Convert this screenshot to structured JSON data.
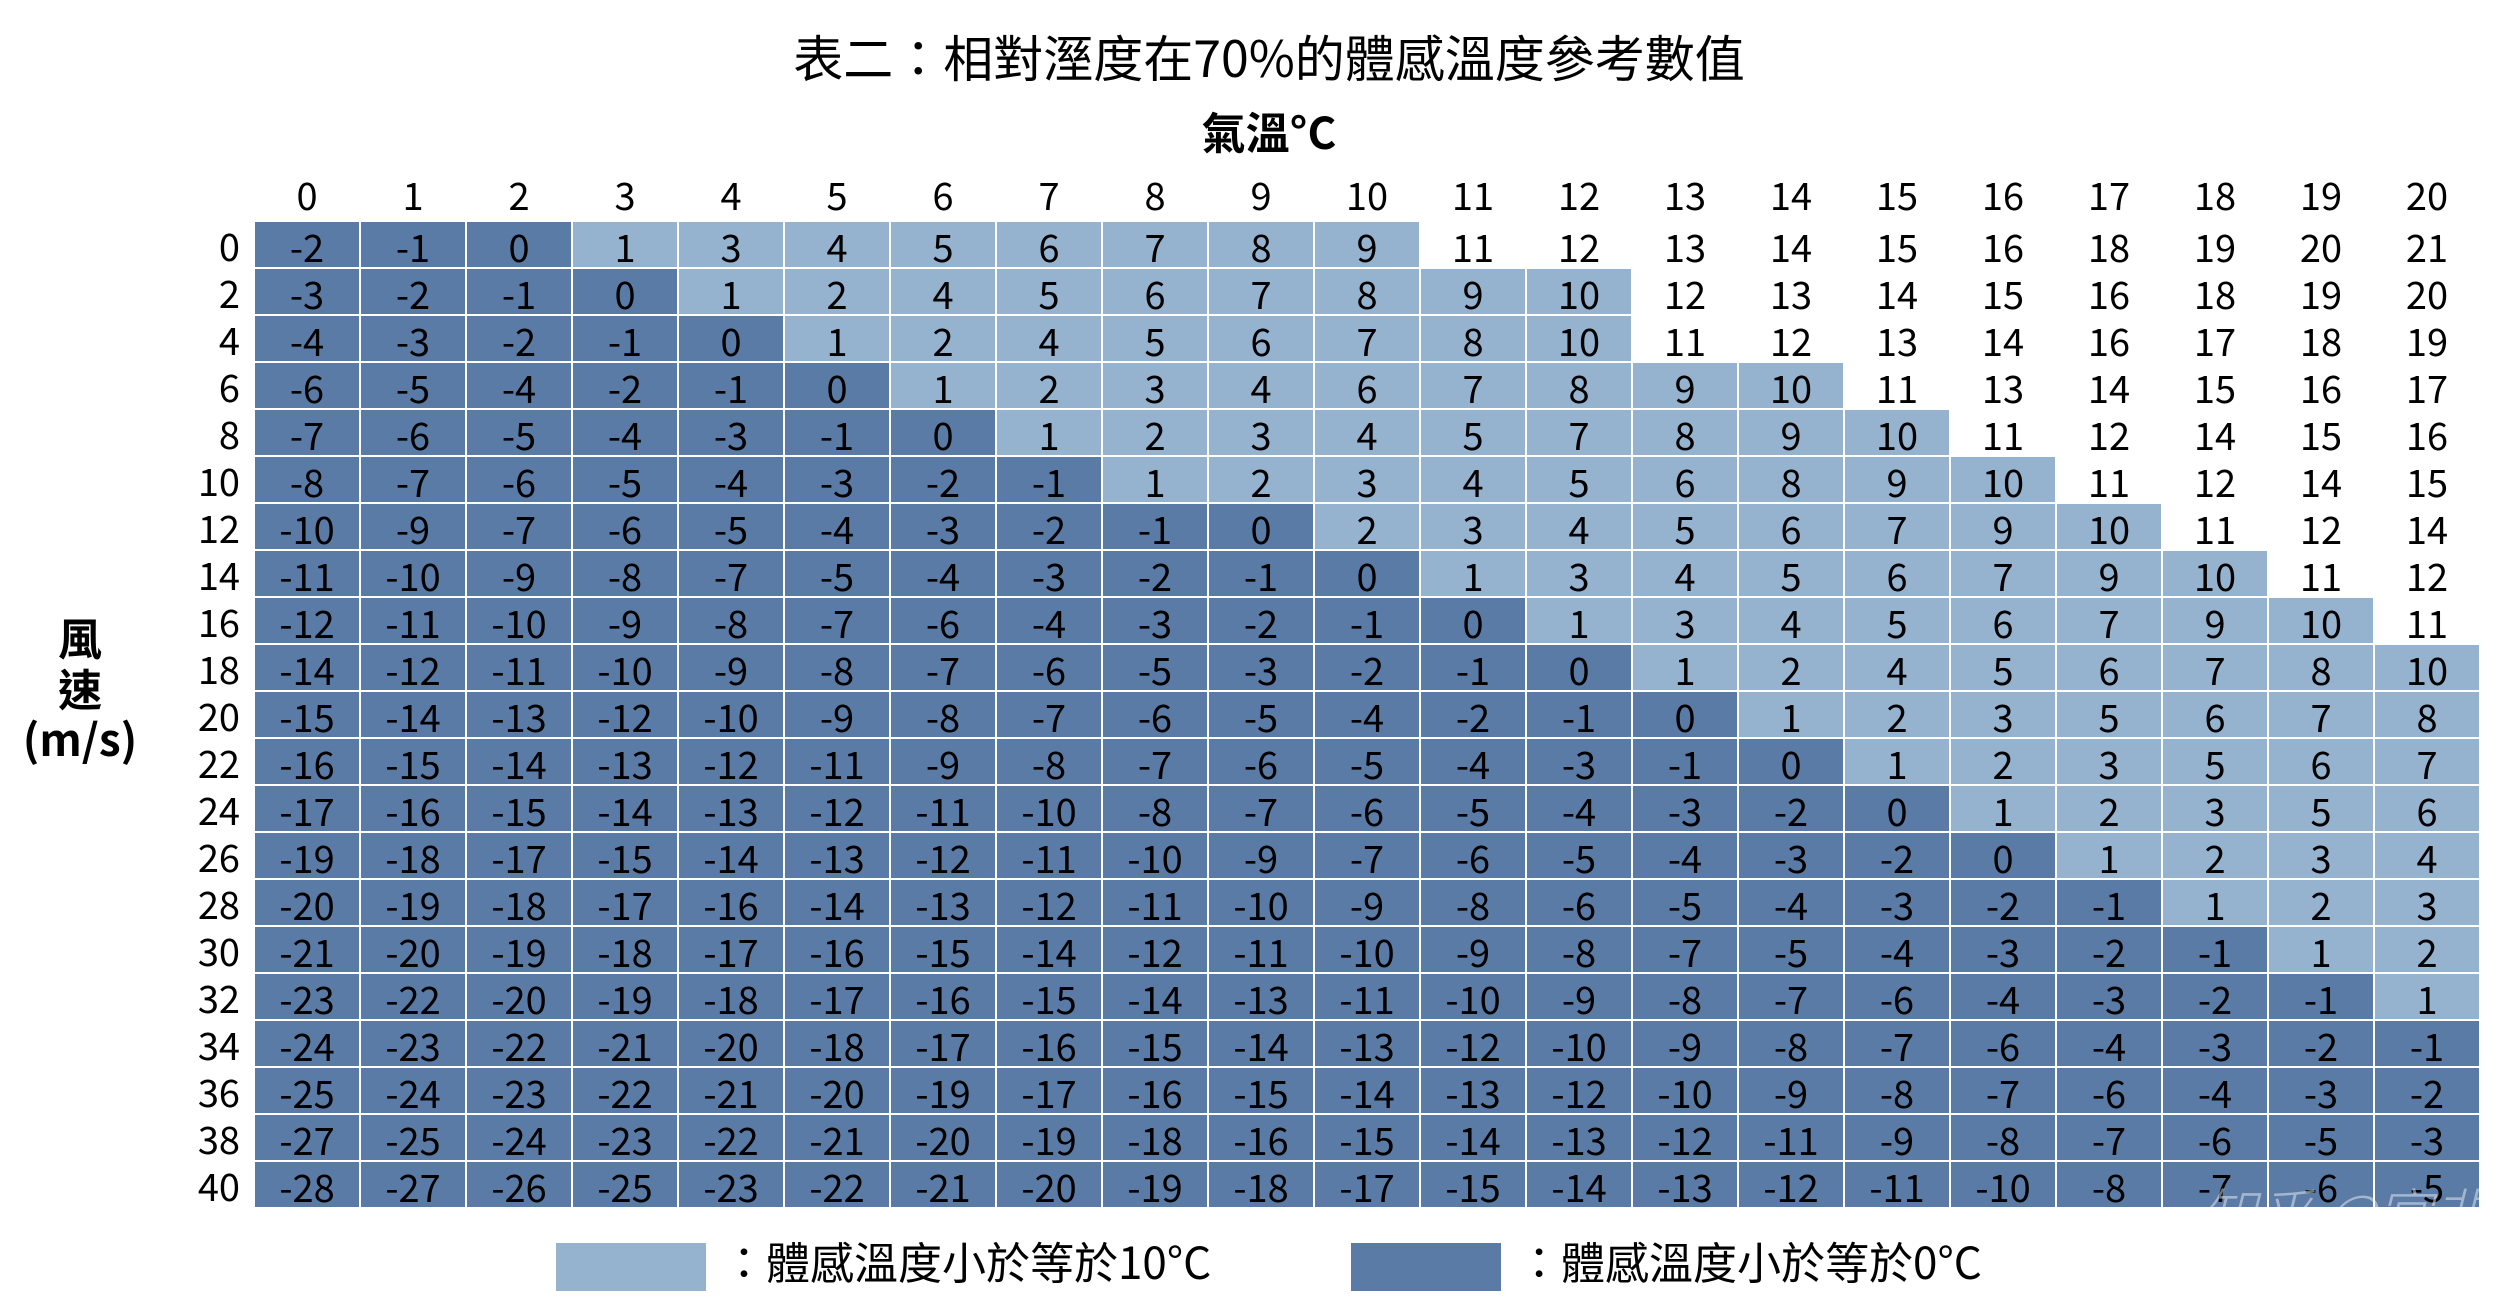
{
  "title": "表二：相對溼度在70%的體感溫度參考數值",
  "subtitle": "氣溫°C",
  "ylabel_lines": [
    "風",
    "速",
    "(m/s)"
  ],
  "legend": {
    "light_text": "：體感溫度小於等於10°C",
    "dark_text": "：體感溫度小於等於0°C"
  },
  "watermark": "知乎 @宮非",
  "colors": {
    "dark": "#5a7ba6",
    "light": "#95b2cf",
    "none": "#ffffff",
    "border": "#ffffff",
    "text": "#000000"
  },
  "font": {
    "title_size": 50,
    "subtitle_size": 44,
    "cell_size": 38,
    "label_size": 44
  },
  "col_headers": [
    0,
    1,
    2,
    3,
    4,
    5,
    6,
    7,
    8,
    9,
    10,
    11,
    12,
    13,
    14,
    15,
    16,
    17,
    18,
    19,
    20
  ],
  "row_headers": [
    0,
    2,
    4,
    6,
    8,
    10,
    12,
    14,
    16,
    18,
    20,
    22,
    24,
    26,
    28,
    30,
    32,
    34,
    36,
    38,
    40
  ],
  "cells": [
    [
      -2,
      -1,
      0,
      1,
      3,
      4,
      5,
      6,
      7,
      8,
      9,
      11,
      12,
      13,
      14,
      15,
      16,
      18,
      19,
      20,
      21
    ],
    [
      -3,
      -2,
      -1,
      0,
      1,
      2,
      4,
      5,
      6,
      7,
      8,
      9,
      10,
      12,
      13,
      14,
      15,
      16,
      18,
      19,
      20
    ],
    [
      -4,
      -3,
      -2,
      -1,
      0,
      1,
      2,
      4,
      5,
      6,
      7,
      8,
      10,
      11,
      12,
      13,
      14,
      16,
      17,
      18,
      19
    ],
    [
      -6,
      -5,
      -4,
      -2,
      -1,
      0,
      1,
      2,
      3,
      4,
      6,
      7,
      8,
      9,
      10,
      11,
      13,
      14,
      15,
      16,
      17
    ],
    [
      -7,
      -6,
      -5,
      -4,
      -3,
      -1,
      0,
      1,
      2,
      3,
      4,
      5,
      7,
      8,
      9,
      10,
      11,
      12,
      14,
      15,
      16
    ],
    [
      -8,
      -7,
      -6,
      -5,
      -4,
      -3,
      -2,
      -1,
      1,
      2,
      3,
      4,
      5,
      6,
      8,
      9,
      10,
      11,
      12,
      14,
      15
    ],
    [
      -10,
      -9,
      -7,
      -6,
      -5,
      -4,
      -3,
      -2,
      -1,
      0,
      2,
      3,
      4,
      5,
      6,
      7,
      9,
      10,
      11,
      12,
      14
    ],
    [
      -11,
      -10,
      -9,
      -8,
      -7,
      -5,
      -4,
      -3,
      -2,
      -1,
      0,
      1,
      3,
      4,
      5,
      6,
      7,
      9,
      10,
      11,
      12
    ],
    [
      -12,
      -11,
      -10,
      -9,
      -8,
      -7,
      -6,
      -4,
      -3,
      -2,
      -1,
      0,
      1,
      3,
      4,
      5,
      6,
      7,
      9,
      10,
      11
    ],
    [
      -14,
      -12,
      -11,
      -10,
      -9,
      -8,
      -7,
      -6,
      -5,
      -3,
      -2,
      -1,
      0,
      1,
      2,
      4,
      5,
      6,
      7,
      8,
      10
    ],
    [
      -15,
      -14,
      -13,
      -12,
      -10,
      -9,
      -8,
      -7,
      -6,
      -5,
      -4,
      -2,
      -1,
      0,
      1,
      2,
      3,
      5,
      6,
      7,
      8
    ],
    [
      -16,
      -15,
      -14,
      -13,
      -12,
      -11,
      -9,
      -8,
      -7,
      -6,
      -5,
      -4,
      -3,
      -1,
      0,
      1,
      2,
      3,
      5,
      6,
      7
    ],
    [
      -17,
      -16,
      -15,
      -14,
      -13,
      -12,
      -11,
      -10,
      -8,
      -7,
      -6,
      -5,
      -4,
      -3,
      -2,
      0,
      1,
      2,
      3,
      5,
      6
    ],
    [
      -19,
      -18,
      -17,
      -15,
      -14,
      -13,
      -12,
      -11,
      -10,
      -9,
      -7,
      -6,
      -5,
      -4,
      -3,
      -2,
      0,
      1,
      2,
      3,
      4
    ],
    [
      -20,
      -19,
      -18,
      -17,
      -16,
      -14,
      -13,
      -12,
      -11,
      -10,
      -9,
      -8,
      -6,
      -5,
      -4,
      -3,
      -2,
      -1,
      1,
      2,
      3
    ],
    [
      -21,
      -20,
      -19,
      -18,
      -17,
      -16,
      -15,
      -14,
      -12,
      -11,
      -10,
      -9,
      -8,
      -7,
      -5,
      -4,
      -3,
      -2,
      -1,
      1,
      2
    ],
    [
      -23,
      -22,
      -20,
      -19,
      -18,
      -17,
      -16,
      -15,
      -14,
      -13,
      -11,
      -10,
      -9,
      -8,
      -7,
      -6,
      -4,
      -3,
      -2,
      -1,
      1
    ],
    [
      -24,
      -23,
      -22,
      -21,
      -20,
      -18,
      -17,
      -16,
      -15,
      -14,
      -13,
      -12,
      -10,
      -9,
      -8,
      -7,
      -6,
      -4,
      -3,
      -2,
      -1
    ],
    [
      -25,
      -24,
      -23,
      -22,
      -21,
      -20,
      -19,
      -17,
      -16,
      -15,
      -14,
      -13,
      -12,
      -10,
      -9,
      -8,
      -7,
      -6,
      -4,
      -3,
      -2
    ],
    [
      -27,
      -25,
      -24,
      -23,
      -22,
      -21,
      -20,
      -19,
      -18,
      -16,
      -15,
      -14,
      -13,
      -12,
      -11,
      -9,
      -8,
      -7,
      -6,
      -5,
      -3
    ],
    [
      -28,
      -27,
      -26,
      -25,
      -23,
      -22,
      -21,
      -20,
      -19,
      -18,
      -17,
      -15,
      -14,
      -13,
      -12,
      -11,
      -10,
      -8,
      -7,
      -6,
      -5
    ]
  ]
}
